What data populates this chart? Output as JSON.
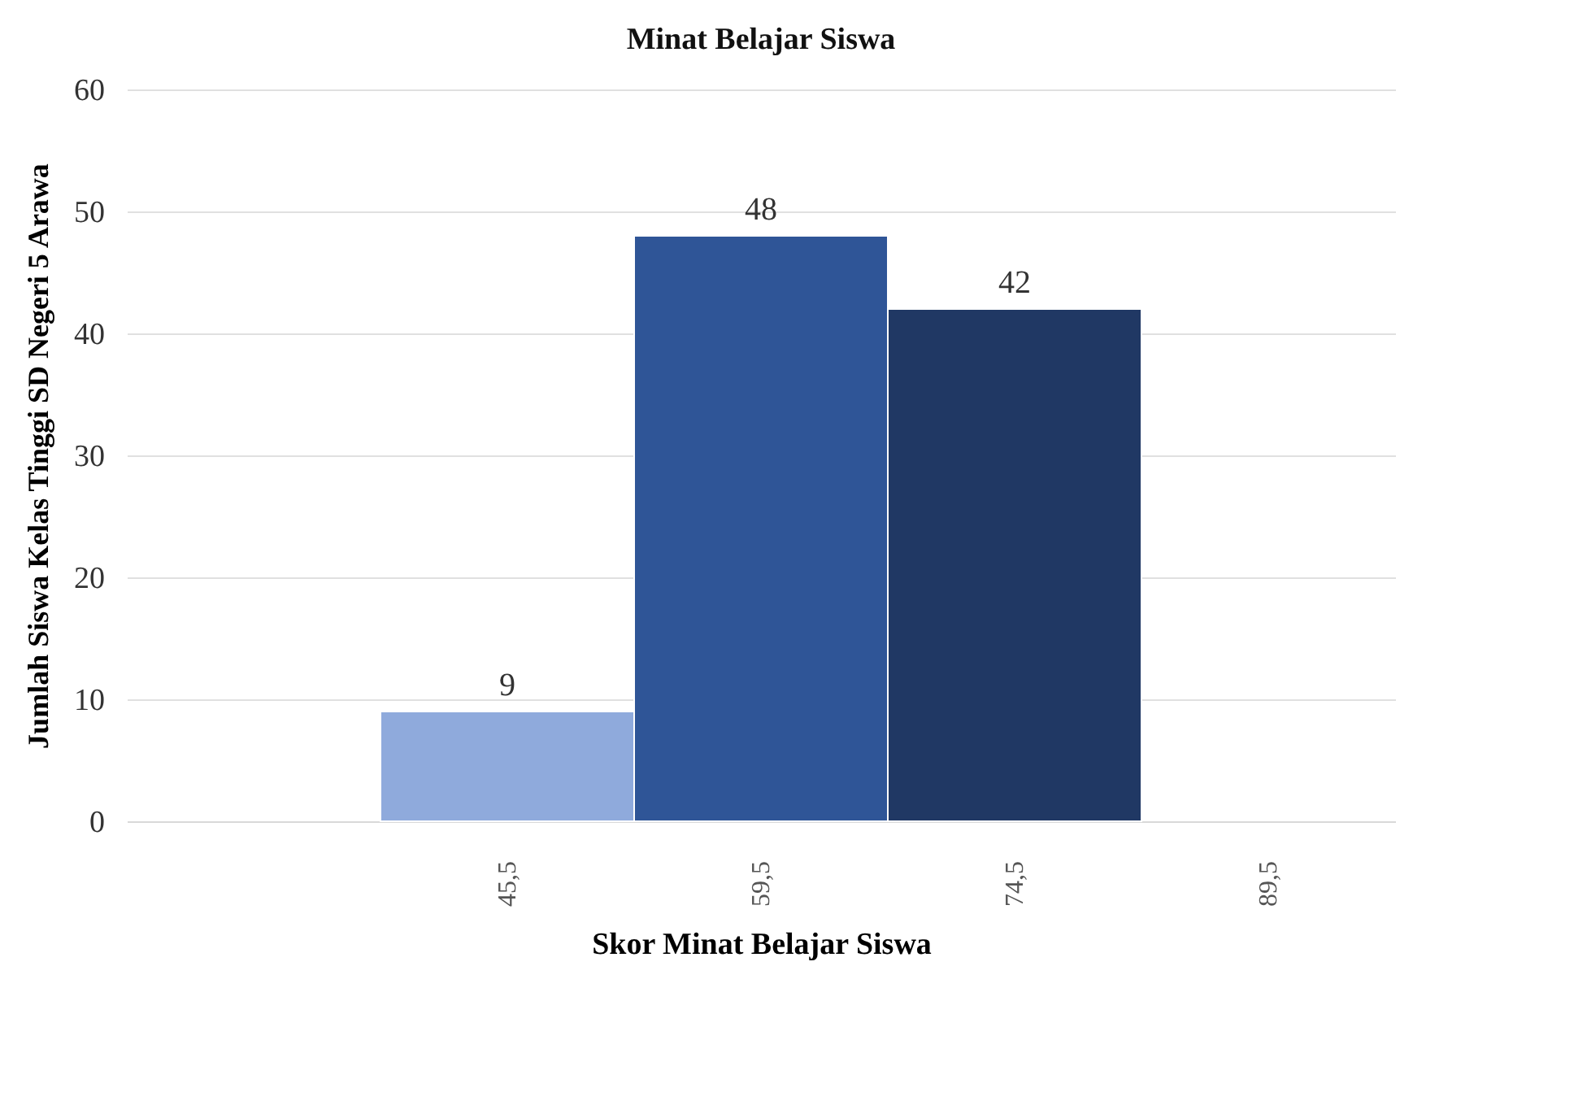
{
  "chart_data": {
    "type": "bar",
    "title": "Minat Belajar Siswa",
    "xlabel": "Skor Minat Belajar Siswa",
    "ylabel": "Jumlah Siswa Kelas Tinggi SD Negeri 5 Arawa",
    "categories": [
      null,
      "45,5",
      "59,5",
      "74,5",
      "89,5"
    ],
    "values": [
      null,
      9,
      48,
      42,
      null
    ],
    "colors": [
      "#8faadc",
      "#8faadc",
      "#2f5597",
      "#203864",
      "#203864"
    ],
    "ylim": [
      0,
      60
    ],
    "yticks": [
      0,
      10,
      20,
      30,
      40,
      50,
      60
    ],
    "grid": "y",
    "data_labels": true
  }
}
